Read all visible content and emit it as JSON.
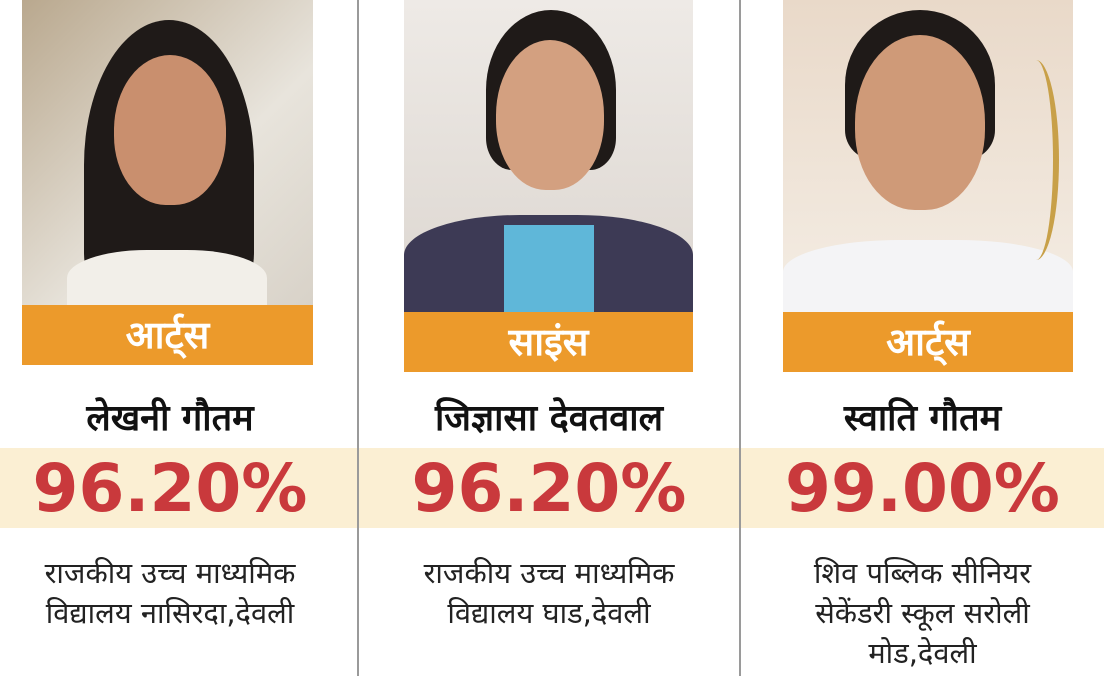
{
  "colors": {
    "accent": "#ec9a2b",
    "percent": "#c9393c",
    "band": "#fbefd3"
  },
  "students": [
    {
      "stream": "आर्ट्स",
      "name": "लेखनी गौतम",
      "percent": "96.20%",
      "school_line1": "राजकीय उच्च माध्यमिक",
      "school_line2": "विद्यालय नासिरदा,देवली",
      "school_line3": ""
    },
    {
      "stream": "साइंस",
      "name": "जिज्ञासा देवतवाल",
      "percent": "96.20%",
      "school_line1": "राजकीय उच्च माध्यमिक",
      "school_line2": "विद्यालय घाड,देवली",
      "school_line3": ""
    },
    {
      "stream": "आर्ट्स",
      "name": "स्वाति गौतम",
      "percent": "99.00%",
      "school_line1": "शिव पब्लिक सीनियर",
      "school_line2": "सेकेंडरी स्कूल सरोली",
      "school_line3": "मोड,देवली"
    }
  ]
}
